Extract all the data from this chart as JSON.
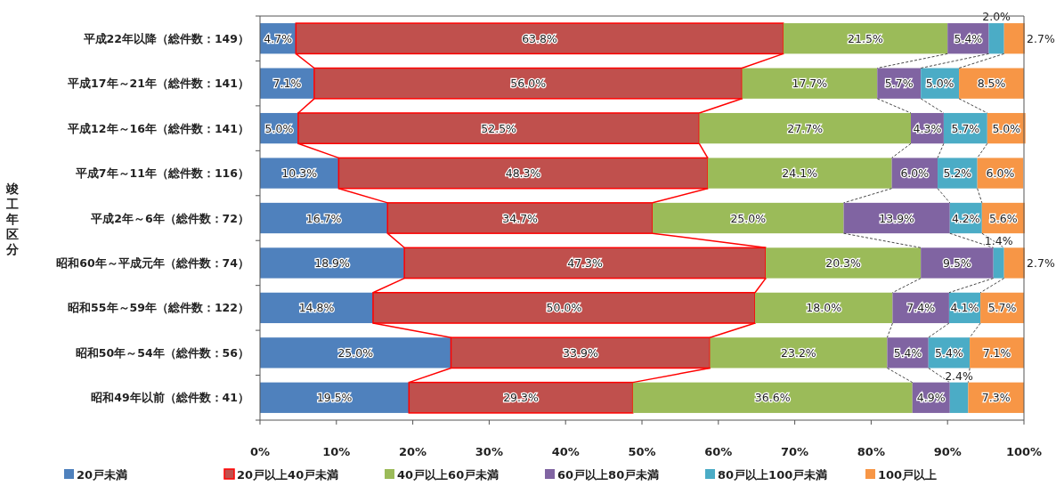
{
  "chart_data": {
    "type": "bar",
    "orientation": "horizontal",
    "stacked": true,
    "ylabel": "竣工年区分",
    "categories": [
      "平成22年以降（総件数：149）",
      "平成17年～21年（総件数：141）",
      "平成12年～16年（総件数：141）",
      "平成7年～11年（総件数：116）",
      "平成2年～6年（総件数：72）",
      "昭和60年～平成元年（総件数：74）",
      "昭和55年～59年（総件数：122）",
      "昭和50年～54年（総件数：56）",
      "昭和49年以前（総件数：41）"
    ],
    "series": [
      {
        "name": "20戸未満",
        "color": "#4f81bd",
        "values": [
          4.7,
          7.1,
          5.0,
          10.3,
          16.7,
          18.9,
          14.8,
          25.0,
          19.5
        ],
        "value_labels": [
          "4.7%",
          "7.1%",
          "5.0%",
          "10.3%",
          "16.7%",
          "18.9%",
          "14.8%",
          "25.0%",
          "19.5%"
        ]
      },
      {
        "name": "20戸以上40戸未満",
        "color": "#c0504d",
        "values": [
          63.8,
          56.0,
          52.5,
          48.3,
          34.7,
          47.3,
          50.0,
          33.9,
          29.3
        ],
        "value_labels": [
          "63.8%",
          "56.0%",
          "52.5%",
          "48.3%",
          "34.7%",
          "47.3%",
          "50.0%",
          "33.9%",
          "29.3%"
        ]
      },
      {
        "name": "40戸以上60戸未満",
        "color": "#9bbb59",
        "values": [
          21.5,
          17.7,
          27.7,
          24.1,
          25.0,
          20.3,
          18.0,
          23.2,
          36.6
        ],
        "value_labels": [
          "21.5%",
          "17.7%",
          "27.7%",
          "24.1%",
          "25.0%",
          "20.3%",
          "18.0%",
          "23.2%",
          "36.6%"
        ]
      },
      {
        "name": "60戸以上80戸未満",
        "color": "#8064a2",
        "values": [
          5.4,
          5.7,
          4.3,
          6.0,
          13.9,
          9.5,
          7.4,
          5.4,
          4.9
        ],
        "value_labels": [
          "5.4%",
          "5.7%",
          "4.3%",
          "6.0%",
          "13.9%",
          "9.5%",
          "7.4%",
          "5.4%",
          "4.9%"
        ]
      },
      {
        "name": "80戸以上100戸未満",
        "color": "#4bacc6",
        "values": [
          2.0,
          5.0,
          5.7,
          5.2,
          4.2,
          1.4,
          4.1,
          5.4,
          2.4
        ],
        "value_labels": [
          "2.0%",
          "5.0%",
          "5.7%",
          "5.2%",
          "4.2%",
          "1.4%",
          "4.1%",
          "5.4%",
          "2.4%"
        ]
      },
      {
        "name": "100戸以上",
        "color": "#f79646",
        "values": [
          2.7,
          8.5,
          5.0,
          6.0,
          5.6,
          2.7,
          5.7,
          7.1,
          7.3
        ],
        "value_labels": [
          "2.7%",
          "8.5%",
          "5.0%",
          "6.0%",
          "5.6%",
          "2.7%",
          "5.7%",
          "7.1%",
          "7.3%"
        ]
      }
    ],
    "xlim": [
      0,
      100
    ],
    "xticks": [
      {
        "value": 0,
        "label": "0%"
      },
      {
        "value": 10,
        "label": "10%"
      },
      {
        "value": 20,
        "label": "20%"
      },
      {
        "value": 30,
        "label": "30%"
      },
      {
        "value": 40,
        "label": "40%"
      },
      {
        "value": 50,
        "label": "50%"
      },
      {
        "value": 60,
        "label": "60%"
      },
      {
        "value": 70,
        "label": "70%"
      },
      {
        "value": 80,
        "label": "80%"
      },
      {
        "value": 90,
        "label": "90%"
      },
      {
        "value": 100,
        "label": "100%"
      }
    ],
    "legend": "bottom",
    "grid": false
  }
}
